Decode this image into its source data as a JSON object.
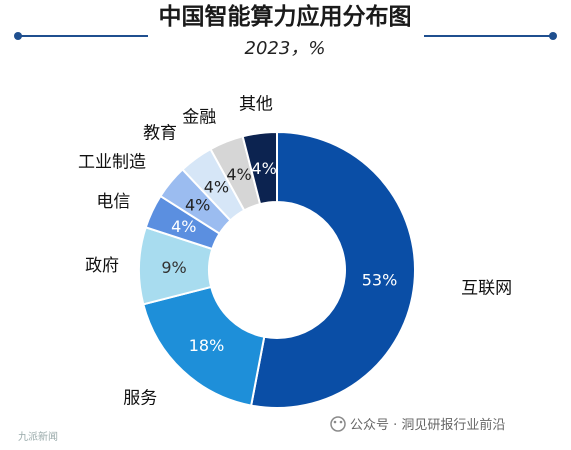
{
  "chart_data": {
    "type": "pie",
    "title": "中国智能算力应用分布图",
    "subtitle": "2023，%",
    "categories": [
      "互联网",
      "服务",
      "政府",
      "电信",
      "工业制造",
      "教育",
      "金融",
      "其他"
    ],
    "values": [
      53,
      18,
      9,
      4,
      4,
      4,
      4,
      4
    ],
    "value_labels": [
      "53%",
      "18%",
      "9%",
      "4%",
      "4%",
      "4%",
      "4%",
      "4%"
    ],
    "colors": [
      "#0a4ea6",
      "#1e8fd9",
      "#a8dcef",
      "#5b8fe0",
      "#9bbcf0",
      "#d6e6f7",
      "#d6d6d6",
      "#0c2350"
    ],
    "label_colors": [
      "#ffffff",
      "#ffffff",
      "#333333",
      "#ffffff",
      "#222222",
      "#222222",
      "#222222",
      "#ffffff"
    ],
    "legend": "none"
  },
  "header": {
    "line_color": "#1f4f8f"
  },
  "watermark": {
    "right_text": "公众号 · 洞见研报行业前沿",
    "left_text": "九派新闻"
  }
}
